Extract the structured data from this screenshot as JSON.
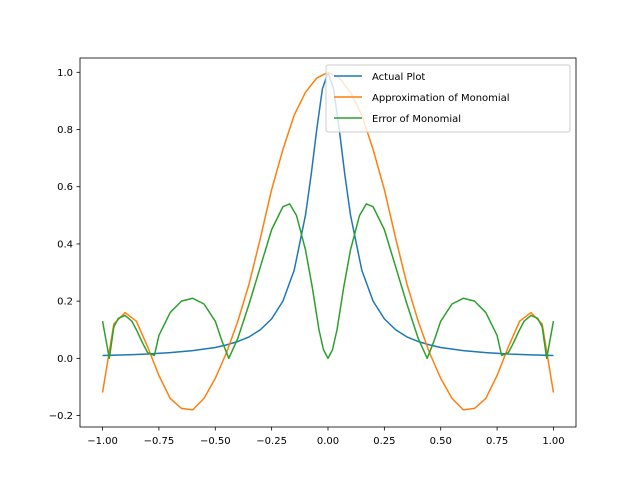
{
  "chart_data": {
    "type": "line",
    "title": "",
    "xlabel": "",
    "ylabel": "",
    "xlim": [
      -1.1,
      1.1
    ],
    "ylim": [
      -0.24,
      1.05
    ],
    "grid": false,
    "legend_position": "top-right",
    "xticks": [
      -1.0,
      -0.75,
      -0.5,
      -0.25,
      0.0,
      0.25,
      0.5,
      0.75,
      1.0
    ],
    "xtick_labels": [
      "−1.00",
      "−0.75",
      "−0.50",
      "−0.25",
      "0.00",
      "0.25",
      "0.50",
      "0.75",
      "1.00"
    ],
    "yticks": [
      -0.2,
      0.0,
      0.2,
      0.4,
      0.6,
      0.8,
      1.0
    ],
    "ytick_labels": [
      "−0.2",
      "0.0",
      "0.2",
      "0.4",
      "0.6",
      "0.8",
      "1.0"
    ],
    "series": [
      {
        "name": "Actual Plot",
        "color": "#1f77b4",
        "x": [
          -1.0,
          -0.9,
          -0.8,
          -0.7,
          -0.6,
          -0.5,
          -0.45,
          -0.4,
          -0.35,
          -0.3,
          -0.25,
          -0.2,
          -0.15,
          -0.1,
          -0.075,
          -0.05,
          -0.025,
          0.0,
          0.025,
          0.05,
          0.075,
          0.1,
          0.15,
          0.2,
          0.25,
          0.3,
          0.35,
          0.4,
          0.45,
          0.5,
          0.6,
          0.7,
          0.8,
          0.9,
          1.0
        ],
        "y": [
          0.01,
          0.012,
          0.015,
          0.02,
          0.027,
          0.038,
          0.047,
          0.059,
          0.075,
          0.1,
          0.138,
          0.2,
          0.308,
          0.5,
          0.64,
          0.8,
          0.941,
          1.0,
          0.941,
          0.8,
          0.64,
          0.5,
          0.308,
          0.2,
          0.138,
          0.1,
          0.075,
          0.059,
          0.047,
          0.038,
          0.027,
          0.02,
          0.015,
          0.012,
          0.01
        ]
      },
      {
        "name": "Approximation of Monomial",
        "color": "#ff7f0e",
        "x": [
          -1.0,
          -0.95,
          -0.9,
          -0.85,
          -0.8,
          -0.75,
          -0.7,
          -0.65,
          -0.6,
          -0.55,
          -0.5,
          -0.45,
          -0.4,
          -0.35,
          -0.3,
          -0.25,
          -0.2,
          -0.15,
          -0.1,
          -0.05,
          0.0,
          0.05,
          0.1,
          0.15,
          0.2,
          0.25,
          0.3,
          0.35,
          0.4,
          0.45,
          0.5,
          0.55,
          0.6,
          0.65,
          0.7,
          0.75,
          0.8,
          0.85,
          0.9,
          0.95,
          1.0
        ],
        "y": [
          -0.12,
          0.12,
          0.16,
          0.13,
          0.04,
          -0.06,
          -0.14,
          -0.175,
          -0.18,
          -0.14,
          -0.07,
          0.02,
          0.13,
          0.26,
          0.42,
          0.59,
          0.73,
          0.85,
          0.93,
          0.98,
          1.0,
          0.98,
          0.93,
          0.85,
          0.73,
          0.59,
          0.42,
          0.26,
          0.13,
          0.02,
          -0.07,
          -0.14,
          -0.18,
          -0.175,
          -0.14,
          -0.06,
          0.04,
          0.13,
          0.16,
          0.12,
          -0.12
        ]
      },
      {
        "name": "Error of Monomial",
        "color": "#2ca02c",
        "x": [
          -1.0,
          -0.97,
          -0.95,
          -0.93,
          -0.9,
          -0.87,
          -0.85,
          -0.82,
          -0.8,
          -0.77,
          -0.75,
          -0.7,
          -0.65,
          -0.6,
          -0.55,
          -0.5,
          -0.47,
          -0.44,
          -0.4,
          -0.35,
          -0.3,
          -0.25,
          -0.2,
          -0.17,
          -0.14,
          -0.1,
          -0.07,
          -0.04,
          -0.02,
          0.0,
          0.02,
          0.04,
          0.07,
          0.1,
          0.14,
          0.17,
          0.2,
          0.25,
          0.3,
          0.35,
          0.4,
          0.44,
          0.47,
          0.5,
          0.55,
          0.6,
          0.65,
          0.7,
          0.75,
          0.77,
          0.8,
          0.82,
          0.85,
          0.87,
          0.9,
          0.93,
          0.95,
          0.97,
          1.0
        ],
        "y": [
          0.13,
          0.0,
          0.11,
          0.14,
          0.15,
          0.13,
          0.1,
          0.05,
          0.02,
          0.01,
          0.08,
          0.16,
          0.2,
          0.21,
          0.19,
          0.13,
          0.06,
          0.0,
          0.07,
          0.19,
          0.32,
          0.45,
          0.53,
          0.54,
          0.5,
          0.38,
          0.25,
          0.1,
          0.03,
          0.0,
          0.03,
          0.1,
          0.25,
          0.38,
          0.5,
          0.54,
          0.53,
          0.45,
          0.32,
          0.19,
          0.07,
          0.0,
          0.06,
          0.13,
          0.19,
          0.21,
          0.2,
          0.16,
          0.08,
          0.01,
          0.02,
          0.05,
          0.1,
          0.13,
          0.15,
          0.14,
          0.11,
          0.0,
          0.13
        ]
      }
    ]
  }
}
